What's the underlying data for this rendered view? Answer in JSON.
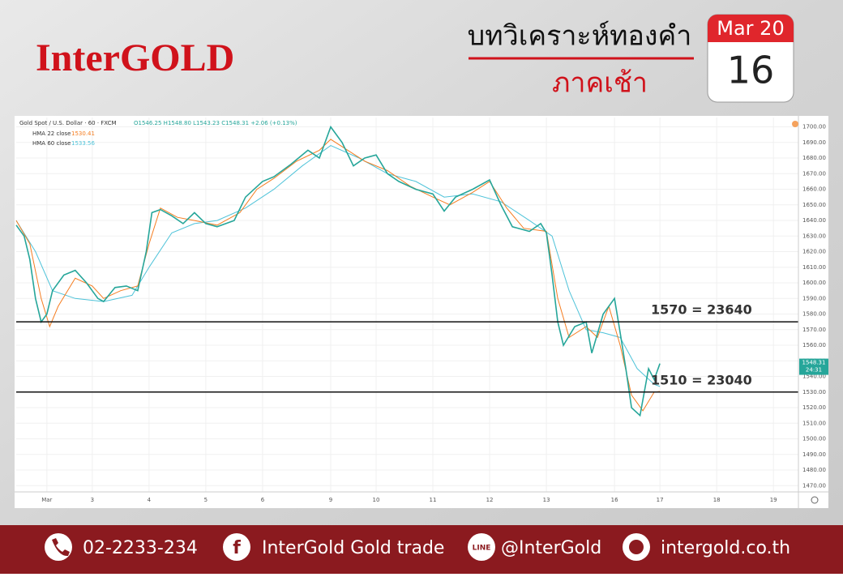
{
  "header": {
    "brand": "InterGOLD",
    "title": "บทวิเคราะห์ทองคำ",
    "subtitle": "ภาคเช้า",
    "month": "Mar 20",
    "day": "16"
  },
  "chart_data": {
    "type": "line",
    "symbol": "Gold Spot / U.S. Dollar · 60 · FXCM",
    "ohlc": "O1546.25 H1548.80 L1543.23 C1548.31 +2.06 (+0.13%)",
    "last_price": 1548.31,
    "countdown": "24:31",
    "series": [
      {
        "name": "Gold Spot / U.S. Dollar",
        "color": "#26a69a",
        "x": [
          -0.54,
          -0.4,
          -0.3,
          -0.2,
          -0.1,
          0,
          0.1,
          0.3,
          0.5,
          0.7,
          0.9,
          1.0,
          1.2,
          1.4,
          1.6,
          1.75,
          1.85,
          2.0,
          2.2,
          2.4,
          2.6,
          2.8,
          3.0,
          3.3,
          3.5,
          3.8,
          4.0,
          4.3,
          4.6,
          4.8,
          5.0,
          5.2,
          5.4,
          5.6,
          5.8,
          6.0,
          6.2,
          6.5,
          6.8,
          7.0,
          7.2,
          7.5,
          7.8,
          8.0,
          8.2,
          8.5,
          8.7,
          8.8,
          8.9,
          9.0,
          9.1,
          9.3,
          9.5,
          9.6,
          9.8,
          10.0,
          10.1,
          10.2,
          10.3,
          10.45,
          10.6,
          10.7,
          10.8
        ],
        "values": [
          1637,
          1630,
          1615,
          1590,
          1575,
          1580,
          1595,
          1605,
          1608,
          1600,
          1590,
          1588,
          1597,
          1598,
          1595,
          1620,
          1645,
          1647,
          1643,
          1638,
          1645,
          1638,
          1636,
          1640,
          1655,
          1665,
          1668,
          1676,
          1685,
          1680,
          1700,
          1690,
          1675,
          1680,
          1682,
          1670,
          1665,
          1660,
          1657,
          1646,
          1655,
          1660,
          1666,
          1650,
          1636,
          1633,
          1638,
          1632,
          1605,
          1575,
          1560,
          1572,
          1575,
          1555,
          1580,
          1590,
          1568,
          1545,
          1520,
          1515,
          1545,
          1538,
          1548.31
        ]
      },
      {
        "name": "HMA 22 close",
        "color": "#f57c1f",
        "legend_value": 1530.41,
        "x": [
          -0.54,
          -0.3,
          -0.1,
          0.05,
          0.2,
          0.5,
          0.8,
          1.0,
          1.3,
          1.6,
          1.8,
          2.0,
          2.3,
          2.6,
          3.0,
          3.4,
          3.7,
          4.0,
          4.4,
          4.8,
          5.0,
          5.3,
          5.6,
          6.0,
          6.4,
          6.8,
          7.1,
          7.5,
          7.8,
          8.1,
          8.4,
          8.8,
          9.0,
          9.2,
          9.5,
          9.7,
          9.9,
          10.1,
          10.3,
          10.5,
          10.7,
          10.8
        ],
        "values": [
          1640,
          1625,
          1590,
          1572,
          1585,
          1603,
          1598,
          1590,
          1595,
          1598,
          1625,
          1648,
          1642,
          1640,
          1637,
          1645,
          1660,
          1667,
          1678,
          1685,
          1692,
          1685,
          1678,
          1672,
          1662,
          1655,
          1650,
          1658,
          1665,
          1648,
          1635,
          1633,
          1590,
          1565,
          1572,
          1565,
          1585,
          1560,
          1528,
          1518,
          1530,
          1530.41
        ]
      },
      {
        "name": "HMA 60 close",
        "color": "#4fc3d9",
        "legend_value": 1533.56,
        "x": [
          -0.54,
          -0.2,
          0.1,
          0.5,
          1.0,
          1.5,
          1.8,
          2.2,
          2.6,
          3.0,
          3.5,
          4.0,
          4.5,
          5.0,
          5.5,
          6.0,
          6.5,
          7.0,
          7.5,
          8.0,
          8.5,
          8.9,
          9.2,
          9.5,
          9.8,
          10.1,
          10.4,
          10.7,
          10.8
        ],
        "values": [
          1640,
          1620,
          1595,
          1590,
          1588,
          1592,
          1610,
          1632,
          1638,
          1640,
          1648,
          1660,
          1675,
          1688,
          1680,
          1670,
          1665,
          1655,
          1657,
          1652,
          1640,
          1630,
          1595,
          1570,
          1568,
          1565,
          1545,
          1535,
          1533.56
        ]
      }
    ],
    "xlim": [
      -0.54,
      13.24
    ],
    "xticks": [
      {
        "value": 0,
        "label": "Mar"
      },
      {
        "value": 0.8,
        "label": "3"
      },
      {
        "value": 1.8,
        "label": "4"
      },
      {
        "value": 2.8,
        "label": "5"
      },
      {
        "value": 3.8,
        "label": "6"
      },
      {
        "value": 5.0,
        "label": "9"
      },
      {
        "value": 5.8,
        "label": "10"
      },
      {
        "value": 6.8,
        "label": "11"
      },
      {
        "value": 7.8,
        "label": "12"
      },
      {
        "value": 8.8,
        "label": "13"
      },
      {
        "value": 10.0,
        "label": "16"
      },
      {
        "value": 10.8,
        "label": "17"
      },
      {
        "value": 11.8,
        "label": "18"
      },
      {
        "value": 12.8,
        "label": "19"
      }
    ],
    "ylim": [
      1466,
      1706
    ],
    "yticks": [
      {
        "value": 1470,
        "label": "1470.00"
      },
      {
        "value": 1480,
        "label": "1480.00"
      },
      {
        "value": 1490,
        "label": "1490.00"
      },
      {
        "value": 1500,
        "label": "1500.00"
      },
      {
        "value": 1510,
        "label": "1510.00"
      },
      {
        "value": 1520,
        "label": "1520.00"
      },
      {
        "value": 1530,
        "label": "1530.00"
      },
      {
        "value": 1540,
        "label": "1540.00"
      },
      {
        "value": 1550,
        "label": "1550.00"
      },
      {
        "value": 1560,
        "label": "1560.00"
      },
      {
        "value": 1570,
        "label": "1570.00"
      },
      {
        "value": 1580,
        "label": "1580.00"
      },
      {
        "value": 1590,
        "label": "1590.00"
      },
      {
        "value": 1600,
        "label": "1600.00"
      },
      {
        "value": 1610,
        "label": "1610.00"
      },
      {
        "value": 1620,
        "label": "1620.00"
      },
      {
        "value": 1630,
        "label": "1630.00"
      },
      {
        "value": 1640,
        "label": "1640.00"
      },
      {
        "value": 1650,
        "label": "1650.00"
      },
      {
        "value": 1660,
        "label": "1660.00"
      },
      {
        "value": 1670,
        "label": "1670.00"
      },
      {
        "value": 1680,
        "label": "1680.00"
      },
      {
        "value": 1690,
        "label": "1690.00"
      },
      {
        "value": 1700,
        "label": "1700.00"
      }
    ],
    "grid": true,
    "annotations": [
      {
        "value": 1575,
        "label": "1570 = 23640"
      },
      {
        "value": 1530,
        "label": "1510 = 23040"
      }
    ]
  },
  "footer": {
    "phone": "02-2233-234",
    "facebook": "InterGold Gold trade",
    "line_icon": "LINE",
    "line": "@InterGold",
    "website": "intergold.co.th"
  }
}
